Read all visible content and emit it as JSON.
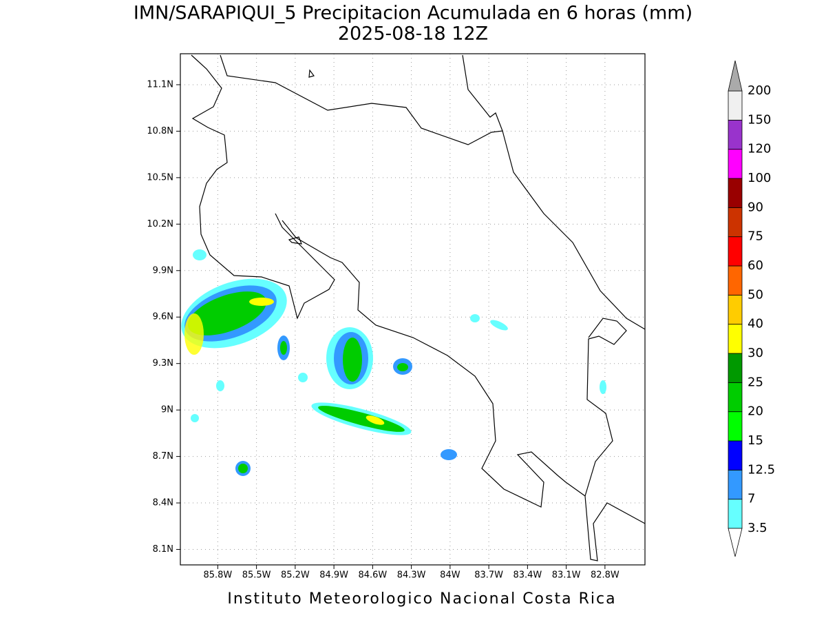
{
  "chart_data": {
    "type": "map",
    "title": "IMN/SARAPIQUI_5 Precipitacion Acumulada en 6 horas (mm)",
    "subtitle": "2025-08-18 12Z",
    "footer": "Instituto Meteorologico Nacional Costa Rica",
    "xlim": [
      -86.09,
      -82.49
    ],
    "ylim": [
      8.0,
      11.3
    ],
    "xticks": [
      {
        "value": -85.8,
        "label": "85.8W"
      },
      {
        "value": -85.5,
        "label": "85.5W"
      },
      {
        "value": -85.2,
        "label": "85.2W"
      },
      {
        "value": -84.9,
        "label": "84.9W"
      },
      {
        "value": -84.6,
        "label": "84.6W"
      },
      {
        "value": -84.3,
        "label": "84.3W"
      },
      {
        "value": -84.0,
        "label": "84W"
      },
      {
        "value": -83.7,
        "label": "83.7W"
      },
      {
        "value": -83.4,
        "label": "83.4W"
      },
      {
        "value": -83.1,
        "label": "83.1W"
      },
      {
        "value": -82.8,
        "label": "82.8W"
      }
    ],
    "yticks": [
      {
        "value": 8.1,
        "label": "8.1N"
      },
      {
        "value": 8.4,
        "label": "8.4N"
      },
      {
        "value": 8.7,
        "label": "8.7N"
      },
      {
        "value": 9.0,
        "label": "9N"
      },
      {
        "value": 9.3,
        "label": "9.3N"
      },
      {
        "value": 9.6,
        "label": "9.6N"
      },
      {
        "value": 9.9,
        "label": "9.9N"
      },
      {
        "value": 10.2,
        "label": "10.2N"
      },
      {
        "value": 10.5,
        "label": "10.5N"
      },
      {
        "value": 10.8,
        "label": "10.8N"
      },
      {
        "value": 11.1,
        "label": "11.1N"
      }
    ],
    "grid": true,
    "colorbar": {
      "levels": [
        3.5,
        7,
        12.5,
        15,
        20,
        25,
        30,
        40,
        50,
        60,
        75,
        90,
        100,
        120,
        150,
        200
      ],
      "colors": [
        "#66ffff",
        "#3399ff",
        "#0000ff",
        "#00ff00",
        "#00cc00",
        "#009900",
        "#ffff00",
        "#ffcc00",
        "#ff6600",
        "#ff0000",
        "#cc3300",
        "#990000",
        "#ff00ff",
        "#9933cc",
        "#f0f0f0"
      ],
      "under_color": "#ffffff",
      "over_color": "#aaaaaa"
    }
  }
}
